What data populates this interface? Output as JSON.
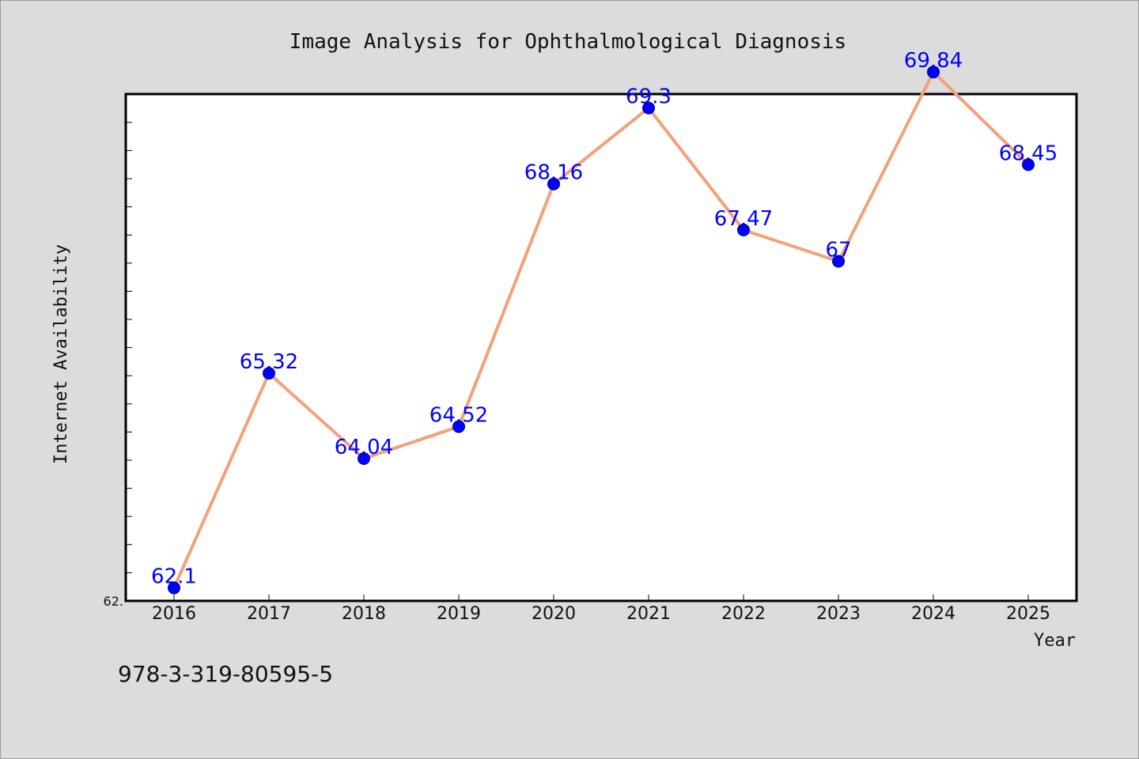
{
  "chart_data": {
    "type": "line",
    "title": "Image Analysis for Ophthalmological Diagnosis",
    "xlabel": "Year",
    "ylabel": "Internet Availability",
    "categories": [
      "2016",
      "2017",
      "2018",
      "2019",
      "2020",
      "2021",
      "2022",
      "2023",
      "2024",
      "2025"
    ],
    "series": [
      {
        "values": [
          62.1,
          65.32,
          64.04,
          64.52,
          68.16,
          69.3,
          67.47,
          67,
          69.84,
          68.45
        ],
        "data_labels": [
          "62.1",
          "65.32",
          "64.04",
          "64.52",
          "68.16",
          "69.3",
          "67.47",
          "67",
          "69.84",
          "68.45"
        ]
      }
    ],
    "ylim": [
      62.0,
      71.0
    ],
    "y_tick_labels": [
      {
        "value": 62.0,
        "label": "62."
      }
    ],
    "grid": false,
    "legend": "none",
    "colors": {
      "line": "#f4a07a",
      "marker": "#0000ff",
      "data_label": "#0000ff",
      "background": "#dcdcdc",
      "plot_background": "#ffffff"
    }
  },
  "footer_text": "978-3-319-80595-5"
}
